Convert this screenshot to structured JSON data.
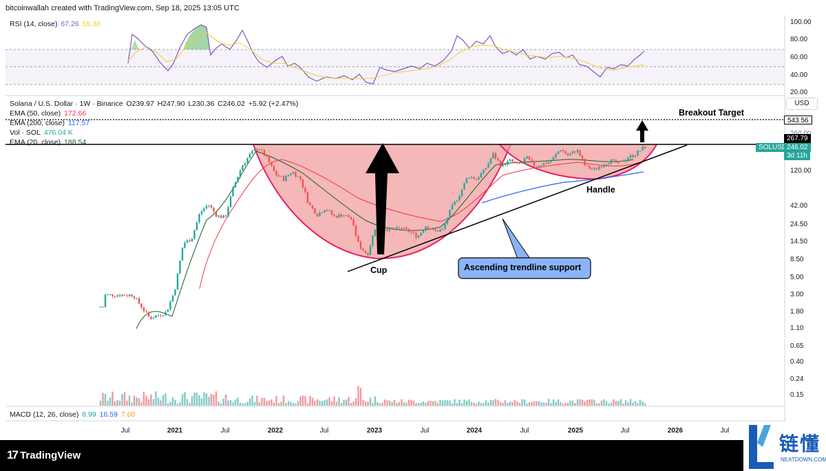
{
  "header": {
    "text": "bitcoinwallah created with TradingView.com, Sep 18, 2025 13:05 UTC"
  },
  "rsi": {
    "label": "RSI (14, close)",
    "value": "67.26",
    "ma_value": "55.38",
    "levels": [
      "100.00",
      "80.00",
      "60.00",
      "40.00",
      "20.00"
    ],
    "line_color": "#7e57c2",
    "ma_color": "#f2d027"
  },
  "symbol": {
    "name": "Solana / U.S. Dollar · 1W · Binance",
    "open": "O239.97",
    "high": "H247.90",
    "low": "L230.36",
    "close": "C246.02",
    "change": "+5.92 (+2.47%)"
  },
  "indicators": {
    "ema50": {
      "label": "EMA (50, close)",
      "value": "172.66",
      "color": "#f23645"
    },
    "ema200": {
      "label": "EMA (200, close)",
      "value": "117.57",
      "color": "#2962ff"
    },
    "vol": {
      "label": "Vol · SOL",
      "value": "476.04 K",
      "color": "#26a69a"
    },
    "ema20": {
      "label": "EMA (20, close)",
      "value": "188.54",
      "color": "#1b5e20"
    }
  },
  "macd": {
    "label": "MACD (12, 26, close)",
    "v1": "8.99",
    "v2": "16.59",
    "v3": "7.60"
  },
  "currency_button": "USD",
  "price_tags": {
    "target": "543.56",
    "resistance": "267.79",
    "current_symbol": "SOLUSD",
    "current": "246.02",
    "countdown": "3d 11h"
  },
  "annotations": {
    "breakout": "Breakout Target",
    "handle": "Handle",
    "cup": "Cup",
    "trendline": "Ascending trendline support"
  },
  "footer": {
    "brand": "TradingView"
  },
  "watermark": {
    "cn": "链懂",
    "en": "NEATDOWN.COM"
  },
  "chart_data": {
    "type": "candlestick",
    "symbol": "SOLUSD",
    "timeframe": "1W",
    "y_scale": "log",
    "y_ticks": [
      543.56,
      260.0,
      120.0,
      42.0,
      24.5,
      14.5,
      8.5,
      5.0,
      3.0,
      1.8,
      1.1,
      0.65,
      0.4,
      0.24,
      0.15
    ],
    "x_ticks": [
      "Jul",
      "2021",
      "Jul",
      "2022",
      "Jul",
      "2023",
      "Jul",
      "2024",
      "Jul",
      "2025",
      "Jul",
      "2026",
      "Jul"
    ],
    "close_series": [
      {
        "date": "2020-08",
        "price": 3.0
      },
      {
        "date": "2020-10",
        "price": 1.5
      },
      {
        "date": "2020-12",
        "price": 1.8
      },
      {
        "date": "2021-01",
        "price": 3.5
      },
      {
        "date": "2021-02",
        "price": 14
      },
      {
        "date": "2021-03",
        "price": 16
      },
      {
        "date": "2021-04",
        "price": 35
      },
      {
        "date": "2021-05",
        "price": 45
      },
      {
        "date": "2021-06",
        "price": 32
      },
      {
        "date": "2021-07",
        "price": 30
      },
      {
        "date": "2021-08",
        "price": 75
      },
      {
        "date": "2021-09",
        "price": 140
      },
      {
        "date": "2021-10",
        "price": 200
      },
      {
        "date": "2021-11",
        "price": 245
      },
      {
        "date": "2021-12",
        "price": 175
      },
      {
        "date": "2022-01",
        "price": 110
      },
      {
        "date": "2022-02",
        "price": 95
      },
      {
        "date": "2022-03",
        "price": 120
      },
      {
        "date": "2022-04",
        "price": 95
      },
      {
        "date": "2022-05",
        "price": 45
      },
      {
        "date": "2022-06",
        "price": 33
      },
      {
        "date": "2022-07",
        "price": 40
      },
      {
        "date": "2022-08",
        "price": 31
      },
      {
        "date": "2022-09",
        "price": 33
      },
      {
        "date": "2022-10",
        "price": 30
      },
      {
        "date": "2022-11",
        "price": 13
      },
      {
        "date": "2022-12",
        "price": 10
      },
      {
        "date": "2023-01",
        "price": 24
      },
      {
        "date": "2023-02",
        "price": 22
      },
      {
        "date": "2023-03",
        "price": 21
      },
      {
        "date": "2023-04",
        "price": 22
      },
      {
        "date": "2023-05",
        "price": 20
      },
      {
        "date": "2023-06",
        "price": 17
      },
      {
        "date": "2023-07",
        "price": 24
      },
      {
        "date": "2023-08",
        "price": 20
      },
      {
        "date": "2023-09",
        "price": 21
      },
      {
        "date": "2023-10",
        "price": 40
      },
      {
        "date": "2023-11",
        "price": 60
      },
      {
        "date": "2023-12",
        "price": 105
      },
      {
        "date": "2024-01",
        "price": 95
      },
      {
        "date": "2024-02",
        "price": 125
      },
      {
        "date": "2024-03",
        "price": 200
      },
      {
        "date": "2024-04",
        "price": 140
      },
      {
        "date": "2024-05",
        "price": 165
      },
      {
        "date": "2024-06",
        "price": 145
      },
      {
        "date": "2024-07",
        "price": 180
      },
      {
        "date": "2024-08",
        "price": 140
      },
      {
        "date": "2024-09",
        "price": 150
      },
      {
        "date": "2024-10",
        "price": 165
      },
      {
        "date": "2024-11",
        "price": 235
      },
      {
        "date": "2024-12",
        "price": 190
      },
      {
        "date": "2025-01",
        "price": 230
      },
      {
        "date": "2025-02",
        "price": 140
      },
      {
        "date": "2025-03",
        "price": 125
      },
      {
        "date": "2025-04",
        "price": 145
      },
      {
        "date": "2025-05",
        "price": 165
      },
      {
        "date": "2025-06",
        "price": 150
      },
      {
        "date": "2025-07",
        "price": 180
      },
      {
        "date": "2025-08",
        "price": 200
      },
      {
        "date": "2025-09",
        "price": 246.02
      }
    ],
    "resistance_level": 267.79,
    "breakout_target": 543.56
  }
}
